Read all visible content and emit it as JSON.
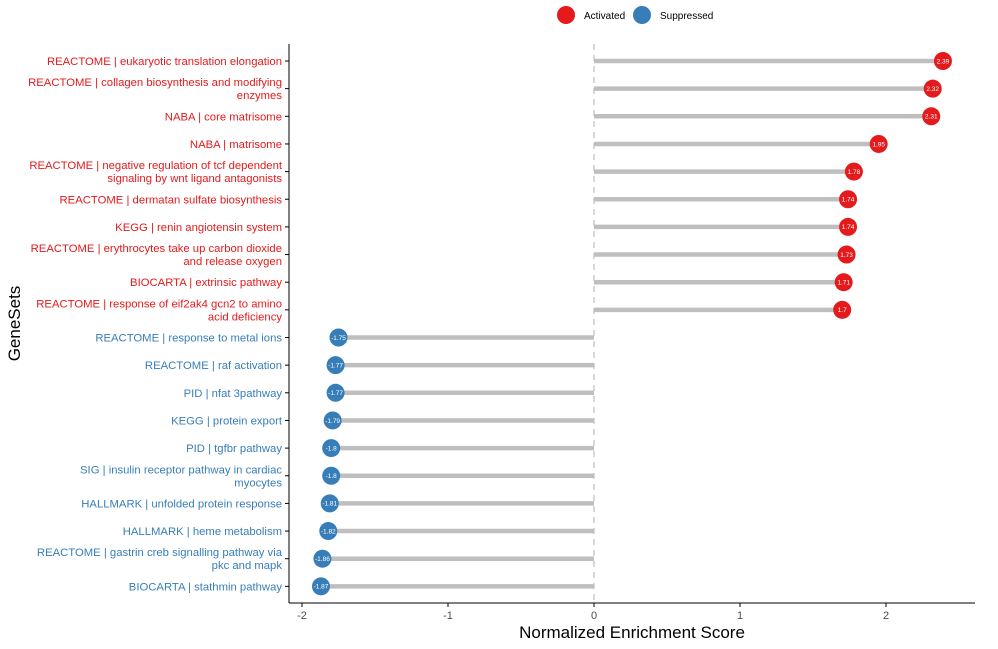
{
  "chart_data": {
    "type": "lollipop",
    "xlabel": "Normalized Enrichment Score",
    "ylabel": "GeneSets",
    "xlim": [
      -2.05,
      2.6
    ],
    "xticks": [
      -2,
      -1,
      0,
      1,
      2
    ],
    "legend": {
      "placement": "top-center",
      "entries": [
        {
          "name": "Activated",
          "color": "#e41a1c"
        },
        {
          "name": "Suppressed",
          "color": "#377eb8"
        }
      ]
    },
    "colors": {
      "activated": "#e41a1c",
      "suppressed": "#377eb8",
      "stem": "#bfbfbf",
      "zero_line": "#bdbdbd"
    },
    "rows": [
      {
        "lines": [
          "REACTOME | eukaryotic translation elongation"
        ],
        "value": 2.39,
        "label": "2.39",
        "group": "Activated"
      },
      {
        "lines": [
          "REACTOME | collagen biosynthesis and modifying",
          "enzymes"
        ],
        "value": 2.32,
        "label": "2.32",
        "group": "Activated"
      },
      {
        "lines": [
          "NABA | core matrisome"
        ],
        "value": 2.31,
        "label": "2.31",
        "group": "Activated"
      },
      {
        "lines": [
          "NABA | matrisome"
        ],
        "value": 1.95,
        "label": "1.95",
        "group": "Activated"
      },
      {
        "lines": [
          "REACTOME | negative regulation of tcf dependent",
          "signaling by wnt ligand antagonists"
        ],
        "value": 1.78,
        "label": "1.78",
        "group": "Activated"
      },
      {
        "lines": [
          "REACTOME | dermatan sulfate biosynthesis"
        ],
        "value": 1.74,
        "label": "1.74",
        "group": "Activated"
      },
      {
        "lines": [
          "KEGG | renin angiotensin system"
        ],
        "value": 1.74,
        "label": "1.74",
        "group": "Activated"
      },
      {
        "lines": [
          "REACTOME | erythrocytes take up carbon dioxide",
          "and release oxygen"
        ],
        "value": 1.73,
        "label": "1.73",
        "group": "Activated"
      },
      {
        "lines": [
          "BIOCARTA | extrinsic pathway"
        ],
        "value": 1.71,
        "label": "1.71",
        "group": "Activated"
      },
      {
        "lines": [
          "REACTOME | response of eif2ak4 gcn2 to amino",
          "acid deficiency"
        ],
        "value": 1.7,
        "label": "1.7",
        "group": "Activated"
      },
      {
        "lines": [
          "REACTOME | response to metal ions"
        ],
        "value": -1.75,
        "label": "-1.75",
        "group": "Suppressed"
      },
      {
        "lines": [
          "REACTOME | raf activation"
        ],
        "value": -1.77,
        "label": "-1.77",
        "group": "Suppressed"
      },
      {
        "lines": [
          "PID | nfat 3pathway"
        ],
        "value": -1.77,
        "label": "-1.77",
        "group": "Suppressed"
      },
      {
        "lines": [
          "KEGG | protein export"
        ],
        "value": -1.79,
        "label": "-1.79",
        "group": "Suppressed"
      },
      {
        "lines": [
          "PID | tgfbr pathway"
        ],
        "value": -1.8,
        "label": "-1.8",
        "group": "Suppressed"
      },
      {
        "lines": [
          "SIG | insulin receptor pathway in cardiac",
          "myocytes"
        ],
        "value": -1.8,
        "label": "-1.8",
        "group": "Suppressed"
      },
      {
        "lines": [
          "HALLMARK | unfolded protein response"
        ],
        "value": -1.81,
        "label": "-1.81",
        "group": "Suppressed"
      },
      {
        "lines": [
          "HALLMARK | heme metabolism"
        ],
        "value": -1.82,
        "label": "-1.82",
        "group": "Suppressed"
      },
      {
        "lines": [
          "REACTOME | gastrin creb signalling pathway via",
          "pkc and mapk"
        ],
        "value": -1.86,
        "label": "-1.86",
        "group": "Suppressed"
      },
      {
        "lines": [
          "BIOCARTA | stathmin pathway"
        ],
        "value": -1.87,
        "label": "-1.87",
        "group": "Suppressed"
      }
    ]
  }
}
